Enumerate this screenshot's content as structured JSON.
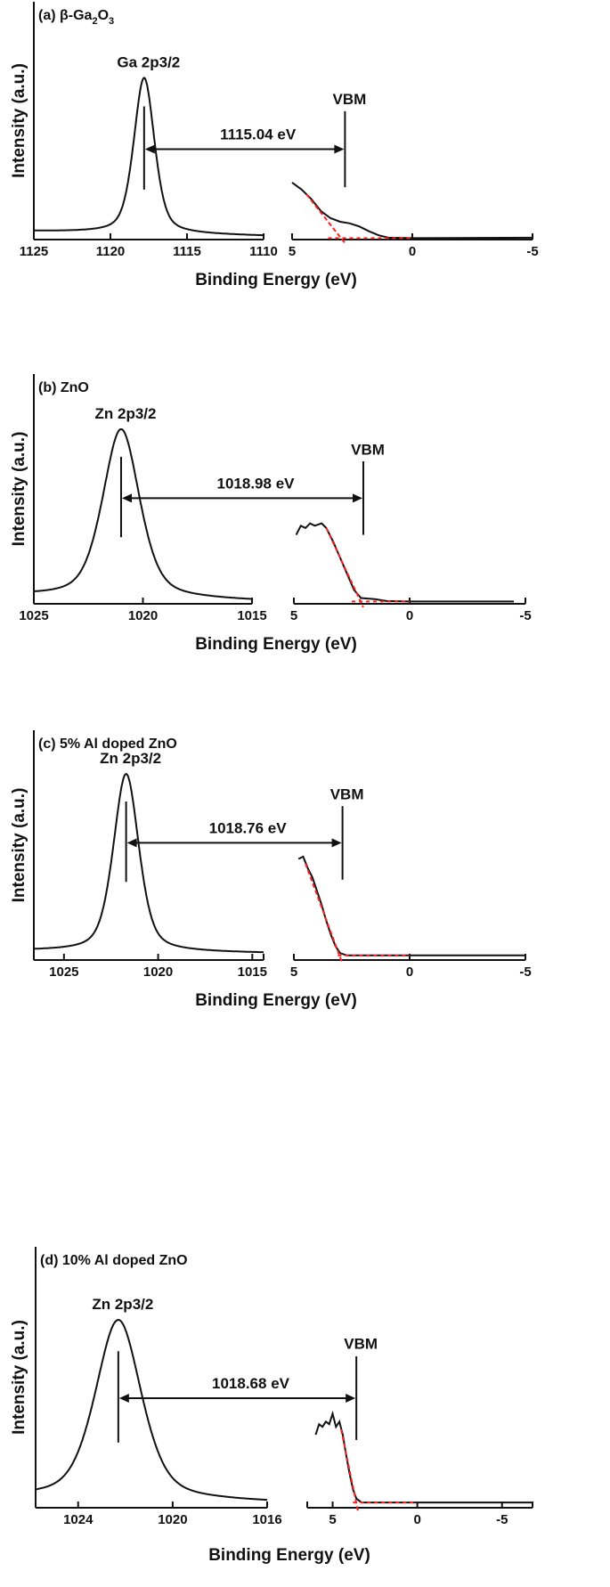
{
  "chart_data": [
    {
      "type": "line",
      "panel_label": "(a) β-Ga",
      "panel_label_sub1": "2",
      "panel_label_mid": "O",
      "panel_label_sub2": "3",
      "xlabel": "Binding Energy (eV)",
      "ylabel": "Intensity (a.u.)",
      "core_level": {
        "label": "Ga 2p3/2",
        "xlim": [
          1125,
          1110
        ],
        "ticks": [
          "1125",
          "1120",
          "1115",
          "1110"
        ],
        "peak": 1117.8,
        "fwhm": 1.6,
        "peak_intensity": 0.68,
        "baseline": [
          0.035,
          0.015
        ]
      },
      "valence_band": {
        "xlim": [
          5,
          -5
        ],
        "ticks": [
          "5",
          "0",
          "-5"
        ],
        "vbm": 2.8,
        "vbm_label": "VBM",
        "points": [
          [
            5,
            0.24
          ],
          [
            4.6,
            0.21
          ],
          [
            4.2,
            0.17
          ],
          [
            3.8,
            0.12
          ],
          [
            3.4,
            0.09
          ],
          [
            3,
            0.075
          ],
          [
            2.6,
            0.068
          ],
          [
            2.2,
            0.055
          ],
          [
            1.8,
            0.035
          ],
          [
            1.4,
            0.018
          ],
          [
            1,
            0.008
          ],
          [
            0,
            0.006
          ],
          [
            -5,
            0.008
          ]
        ],
        "fit_line": [
          [
            4.4,
            0.19
          ],
          [
            2.8,
            0
          ]
        ],
        "baseline_fit": [
          [
            3.5,
            0.006
          ],
          [
            0,
            0.006
          ]
        ]
      },
      "difference_label": "1115.04 eV"
    },
    {
      "type": "line",
      "panel_label": "(b) ZnO",
      "xlabel": "Binding Energy (eV)",
      "ylabel": "Intensity (a.u.)",
      "core_level": {
        "label": "Zn 2p3/2",
        "xlim": [
          1025,
          1015
        ],
        "ticks": [
          "1025",
          "1020",
          "1015"
        ],
        "peak": 1021.0,
        "fwhm": 2.0,
        "peak_intensity": 0.76,
        "baseline": [
          0.035,
          0.012
        ]
      },
      "valence_band": {
        "xlim": [
          5,
          -5
        ],
        "ticks": [
          "5",
          "0",
          "-5"
        ],
        "vbm": 2.0,
        "vbm_label": "VBM",
        "points": [
          [
            4.9,
            0.3
          ],
          [
            4.7,
            0.34
          ],
          [
            4.5,
            0.33
          ],
          [
            4.3,
            0.35
          ],
          [
            4.1,
            0.34
          ],
          [
            3.8,
            0.35
          ],
          [
            3.6,
            0.33
          ],
          [
            3.3,
            0.27
          ],
          [
            3,
            0.2
          ],
          [
            2.7,
            0.13
          ],
          [
            2.4,
            0.06
          ],
          [
            2.1,
            0.025
          ],
          [
            1.5,
            0.02
          ],
          [
            1,
            0.012
          ],
          [
            0,
            0.01
          ],
          [
            -4.5,
            0.01
          ]
        ],
        "fit_line": [
          [
            3.6,
            0.33
          ],
          [
            2.0,
            0
          ]
        ],
        "baseline_fit": [
          [
            2.5,
            0.01
          ],
          [
            0,
            0.01
          ]
        ]
      },
      "difference_label": "1018.98 eV"
    },
    {
      "type": "line",
      "panel_label": "(c) 5% Al doped ZnO",
      "xlabel": "Binding Energy (eV)",
      "ylabel": "Intensity (a.u.)",
      "core_level": {
        "label": "Zn 2p3/2",
        "xlim": [
          1026.6,
          1014.4
        ],
        "ticks": [
          "1025",
          "1020",
          "1015"
        ],
        "peak": 1021.7,
        "fwhm": 1.6,
        "peak_intensity": 0.81,
        "baseline": [
          0.04,
          0.03
        ]
      },
      "valence_band": {
        "xlim": [
          5,
          -5
        ],
        "ticks": [
          "5",
          "0",
          "-5"
        ],
        "vbm": 2.9,
        "vbm_label": "VBM",
        "points": [
          [
            4.8,
            0.44
          ],
          [
            4.6,
            0.45
          ],
          [
            4.4,
            0.4
          ],
          [
            4.2,
            0.36
          ],
          [
            4,
            0.3
          ],
          [
            3.8,
            0.24
          ],
          [
            3.6,
            0.17
          ],
          [
            3.4,
            0.11
          ],
          [
            3.2,
            0.06
          ],
          [
            3,
            0.03
          ],
          [
            2.7,
            0.02
          ],
          [
            1,
            0.02
          ],
          [
            0,
            0.02
          ],
          [
            -5,
            0.02
          ]
        ],
        "fit_line": [
          [
            4.5,
            0.42
          ],
          [
            2.9,
            0
          ]
        ],
        "baseline_fit": [
          [
            3.1,
            0.02
          ],
          [
            0,
            0.02
          ]
        ]
      },
      "difference_label": "1018.76 eV"
    },
    {
      "type": "line",
      "panel_label": "(d) 10% Al doped ZnO",
      "xlabel": "Binding Energy (eV)",
      "ylabel": "Intensity (a.u.)",
      "core_level": {
        "label": "Zn 2p3/2",
        "xlim": [
          1025.8,
          1016
        ],
        "ticks": [
          "1024",
          "1020",
          "1016"
        ],
        "peak": 1022.3,
        "fwhm": 2.3,
        "peak_intensity": 0.72,
        "baseline": [
          0.04,
          0.02
        ]
      },
      "valence_band": {
        "xlim": [
          6.5,
          -6.8
        ],
        "ticks": [
          "5",
          "0",
          "-5"
        ],
        "vbm": 3.6,
        "vbm_label": "VBM",
        "points": [
          [
            6,
            0.28
          ],
          [
            5.8,
            0.32
          ],
          [
            5.6,
            0.31
          ],
          [
            5.4,
            0.33
          ],
          [
            5.2,
            0.32
          ],
          [
            5,
            0.36
          ],
          [
            4.8,
            0.31
          ],
          [
            4.6,
            0.33
          ],
          [
            4.4,
            0.28
          ],
          [
            4.2,
            0.2
          ],
          [
            4,
            0.13
          ],
          [
            3.8,
            0.07
          ],
          [
            3.6,
            0.035
          ],
          [
            3.3,
            0.02
          ],
          [
            2,
            0.02
          ],
          [
            0,
            0.02
          ],
          [
            -6.8,
            0.02
          ]
        ],
        "fit_line": [
          [
            4.5,
            0.3
          ],
          [
            3.5,
            0
          ]
        ],
        "baseline_fit": [
          [
            3.8,
            0.02
          ],
          [
            0,
            0.02
          ]
        ]
      },
      "difference_label": "1018.68 eV"
    }
  ],
  "colors": {
    "curve": "#111111",
    "fit": "#ff2020"
  }
}
